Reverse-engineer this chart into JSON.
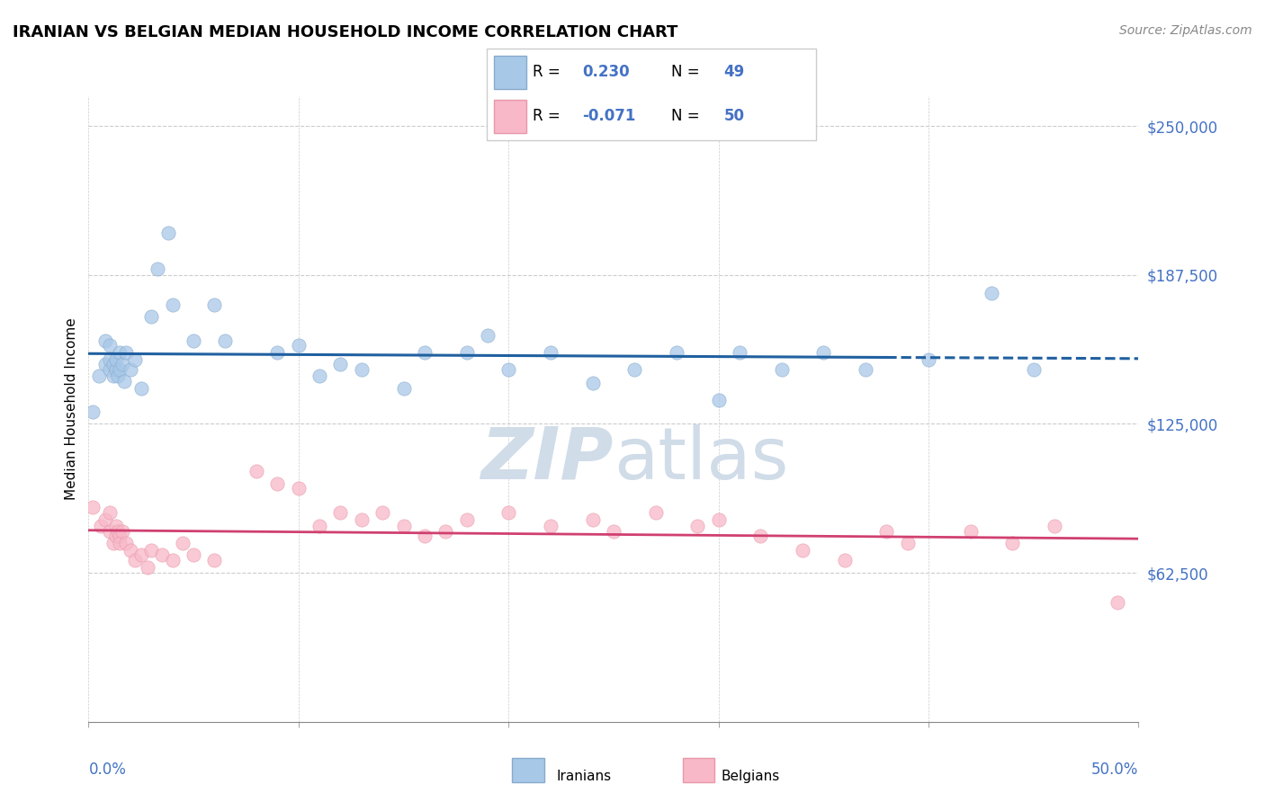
{
  "title": "IRANIAN VS BELGIAN MEDIAN HOUSEHOLD INCOME CORRELATION CHART",
  "source": "Source: ZipAtlas.com",
  "ylabel": "Median Household Income",
  "xmin": 0.0,
  "xmax": 0.5,
  "ymin": 0,
  "ymax": 262500,
  "yticks": [
    0,
    62500,
    125000,
    187500,
    250000
  ],
  "ytick_labels": [
    "",
    "$62,500",
    "$125,000",
    "$187,500",
    "$250,000"
  ],
  "iranians_r": "0.230",
  "iranians_n": "49",
  "belgians_r": "-0.071",
  "belgians_n": "50",
  "blue_fill": "#a8c8e8",
  "blue_edge": "#88aacc",
  "pink_fill": "#f8b8c8",
  "pink_edge": "#e898a8",
  "blue_line_color": "#2060a0",
  "pink_line_color": "#d04070",
  "text_blue": "#4472c4",
  "text_pink": "#d04070",
  "watermark_color": "#d0dce8",
  "iranians_x": [
    0.002,
    0.005,
    0.008,
    0.008,
    0.01,
    0.01,
    0.01,
    0.012,
    0.012,
    0.013,
    0.013,
    0.014,
    0.015,
    0.015,
    0.016,
    0.017,
    0.018,
    0.02,
    0.022,
    0.025,
    0.03,
    0.033,
    0.038,
    0.04,
    0.05,
    0.06,
    0.065,
    0.09,
    0.1,
    0.11,
    0.12,
    0.13,
    0.15,
    0.16,
    0.18,
    0.19,
    0.2,
    0.22,
    0.24,
    0.26,
    0.28,
    0.3,
    0.31,
    0.33,
    0.35,
    0.37,
    0.4,
    0.43,
    0.45
  ],
  "iranians_y": [
    130000,
    145000,
    150000,
    160000,
    148000,
    152000,
    158000,
    145000,
    150000,
    148000,
    152000,
    145000,
    155000,
    148000,
    150000,
    143000,
    155000,
    148000,
    152000,
    140000,
    170000,
    190000,
    205000,
    175000,
    160000,
    175000,
    160000,
    155000,
    158000,
    145000,
    150000,
    148000,
    140000,
    155000,
    155000,
    162000,
    148000,
    155000,
    142000,
    148000,
    155000,
    135000,
    155000,
    148000,
    155000,
    148000,
    152000,
    180000,
    148000
  ],
  "belgians_x": [
    0.002,
    0.006,
    0.008,
    0.01,
    0.01,
    0.012,
    0.013,
    0.013,
    0.014,
    0.015,
    0.015,
    0.016,
    0.018,
    0.02,
    0.022,
    0.025,
    0.028,
    0.03,
    0.035,
    0.04,
    0.045,
    0.05,
    0.06,
    0.08,
    0.09,
    0.1,
    0.11,
    0.12,
    0.13,
    0.14,
    0.15,
    0.16,
    0.17,
    0.18,
    0.2,
    0.22,
    0.24,
    0.25,
    0.27,
    0.29,
    0.3,
    0.32,
    0.34,
    0.36,
    0.38,
    0.39,
    0.42,
    0.44,
    0.46,
    0.49
  ],
  "belgians_y": [
    90000,
    82000,
    85000,
    88000,
    80000,
    75000,
    78000,
    82000,
    80000,
    78000,
    75000,
    80000,
    75000,
    72000,
    68000,
    70000,
    65000,
    72000,
    70000,
    68000,
    75000,
    70000,
    68000,
    105000,
    100000,
    98000,
    82000,
    88000,
    85000,
    88000,
    82000,
    78000,
    80000,
    85000,
    88000,
    82000,
    85000,
    80000,
    88000,
    82000,
    85000,
    78000,
    72000,
    68000,
    80000,
    75000,
    80000,
    75000,
    82000,
    50000
  ]
}
